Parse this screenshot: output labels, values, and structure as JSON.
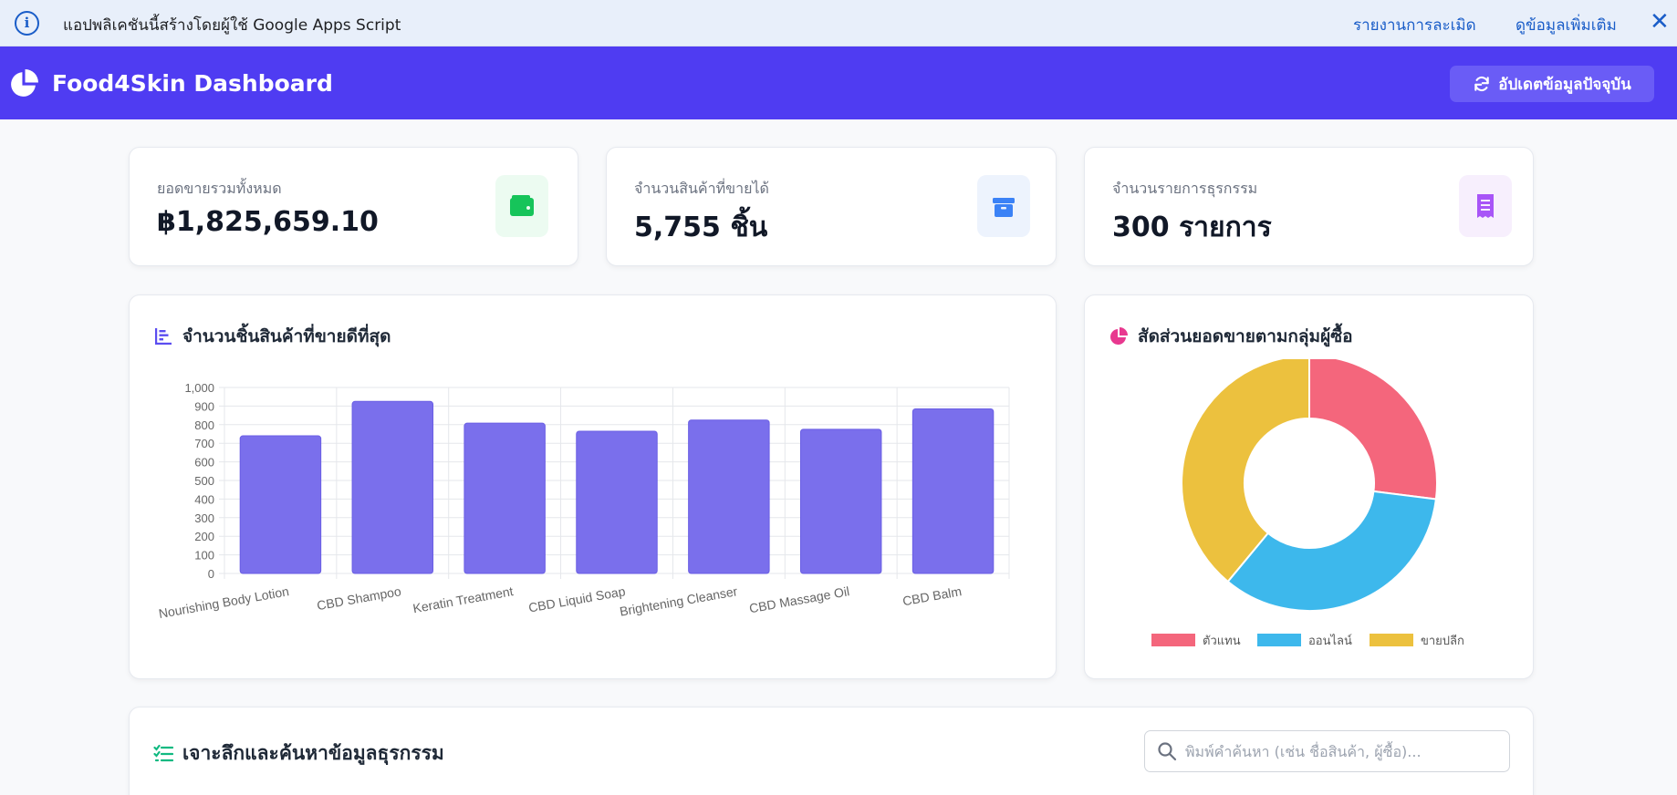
{
  "banner": {
    "text": "แอปพลิเคชันนี้สร้างโดยผู้ใช้ Google Apps Script",
    "report_link": "รายงานการละเมิด",
    "more_link": "ดูข้อมูลเพิ่มเติม",
    "close_symbol": "✕",
    "info_symbol": "i",
    "color": "#1a5dc8"
  },
  "header": {
    "title": "Food4Skin Dashboard",
    "refresh_label": "อัปเดตข้อมูลปัจจุบัน",
    "background": "#4f3cf2"
  },
  "stats": [
    {
      "label": "ยอดขายรวมทั้งหมด",
      "value": "฿1,825,659.10",
      "icon": "wallet-icon",
      "color": "#16a34a"
    },
    {
      "label": "จำนวนสินค้าที่ขายได้",
      "value": "5,755 ชิ้น",
      "icon": "box-icon",
      "color": "#3b82f6"
    },
    {
      "label": "จำนวนรายการธุรกรรม",
      "value": "300 รายการ",
      "icon": "receipt-icon",
      "color": "#a855f7"
    }
  ],
  "bar_card": {
    "title": "จำนวนชิ้นสินค้าที่ขายดีที่สุด",
    "icon": "bar-chart-icon"
  },
  "pie_card": {
    "title": "สัดส่วนยอดขายตามกลุ่มผู้ซื้อ",
    "icon": "pie-chart-icon"
  },
  "table_card": {
    "title": "เจาะลึกและค้นหาข้อมูลธุรกรรม",
    "icon": "list-check-icon",
    "search_placeholder": "พิมพ์คำค้นหา (เช่น ชื่อสินค้า, ผู้ซื้อ)..."
  },
  "chart_data": [
    {
      "type": "bar",
      "title": "จำนวนชิ้นสินค้าที่ขายดีที่สุด",
      "categories": [
        "Nourishing Body Lotion",
        "CBD Shampoo",
        "Keratin Treatment",
        "CBD Liquid Soap",
        "Brightening Cleanser",
        "CBD Massage Oil",
        "CBD Balm"
      ],
      "values": [
        740,
        925,
        808,
        765,
        825,
        775,
        885
      ],
      "ylim": [
        0,
        1000
      ],
      "yticks": [
        "0",
        "100",
        "200",
        "300",
        "400",
        "500",
        "600",
        "700",
        "800",
        "900",
        "1,000"
      ],
      "grid": true,
      "color": "#7a6fec"
    },
    {
      "type": "pie",
      "variant": "doughnut",
      "title": "สัดส่วนยอดขายตามกลุ่มผู้ซื้อ",
      "categories": [
        "ตัวแทน",
        "ออนไลน์",
        "ขายปลีก"
      ],
      "values": [
        27,
        34,
        39
      ],
      "colors": [
        "#f4667c",
        "#3db8ec",
        "#ecc13e"
      ],
      "legend": "bottom"
    }
  ]
}
